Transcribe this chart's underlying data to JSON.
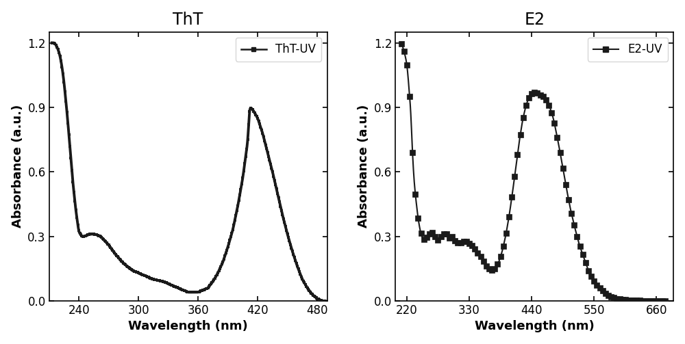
{
  "tht_title": "ThT",
  "e2_title": "E2",
  "tht_legend": "ThT-UV",
  "e2_legend": "E2-UV",
  "xlabel": "Wavelength (nm)",
  "ylabel": "Absorbance (a.u.)",
  "tht_xlim": [
    210,
    490
  ],
  "tht_xticks": [
    240,
    300,
    360,
    420,
    480
  ],
  "tht_ylim": [
    0,
    1.25
  ],
  "tht_yticks": [
    0.0,
    0.3,
    0.6,
    0.9,
    1.2
  ],
  "e2_xlim": [
    200,
    690
  ],
  "e2_xticks": [
    220,
    330,
    440,
    550,
    660
  ],
  "e2_ylim": [
    0,
    1.25
  ],
  "e2_yticks": [
    0.0,
    0.3,
    0.6,
    0.9,
    1.2
  ],
  "line_color": "#1a1a1a",
  "bg_color": "#ffffff",
  "title_fontsize": 17,
  "label_fontsize": 13,
  "tick_fontsize": 12,
  "legend_fontsize": 12,
  "tht_linewidth": 2.8,
  "e2_linewidth": 0.0,
  "marker": "s",
  "tht_markersize": 3,
  "e2_markersize": 6,
  "tht_markerspacing": 2,
  "e2_markerspacing": 6,
  "tht_key_x": [
    213,
    215,
    217,
    219,
    221,
    223,
    225,
    228,
    231,
    234,
    237,
    240,
    243,
    246,
    250,
    256,
    262,
    270,
    278,
    286,
    295,
    305,
    315,
    325,
    335,
    345,
    350,
    355,
    360,
    365,
    370,
    375,
    380,
    385,
    390,
    395,
    400,
    405,
    410,
    412,
    415,
    420,
    425,
    430,
    435,
    440,
    445,
    450,
    455,
    460,
    465,
    470,
    475,
    480,
    485,
    488
  ],
  "tht_key_y": [
    1.2,
    1.2,
    1.19,
    1.17,
    1.14,
    1.09,
    1.02,
    0.88,
    0.72,
    0.55,
    0.42,
    0.32,
    0.3,
    0.3,
    0.31,
    0.31,
    0.3,
    0.26,
    0.21,
    0.17,
    0.14,
    0.12,
    0.1,
    0.09,
    0.07,
    0.05,
    0.04,
    0.04,
    0.04,
    0.05,
    0.06,
    0.09,
    0.13,
    0.18,
    0.25,
    0.33,
    0.44,
    0.57,
    0.74,
    0.9,
    0.89,
    0.85,
    0.78,
    0.69,
    0.6,
    0.5,
    0.4,
    0.31,
    0.23,
    0.16,
    0.1,
    0.06,
    0.03,
    0.01,
    0.0,
    0.0
  ],
  "e2_key_x": [
    210,
    213,
    216,
    218,
    220,
    222,
    224,
    226,
    228,
    230,
    233,
    236,
    240,
    244,
    248,
    252,
    256,
    260,
    264,
    268,
    272,
    276,
    280,
    284,
    288,
    292,
    296,
    300,
    305,
    310,
    316,
    322,
    328,
    334,
    340,
    346,
    352,
    358,
    364,
    370,
    376,
    382,
    388,
    394,
    400,
    406,
    412,
    418,
    424,
    430,
    436,
    442,
    448,
    454,
    460,
    466,
    472,
    478,
    482,
    488,
    494,
    500,
    508,
    516,
    524,
    532,
    540,
    548,
    556,
    564,
    572,
    580,
    590,
    600,
    612,
    624,
    636,
    648,
    660,
    672,
    680
  ],
  "e2_key_y": [
    1.2,
    1.18,
    1.15,
    1.13,
    1.1,
    1.05,
    0.98,
    0.92,
    0.82,
    0.68,
    0.55,
    0.47,
    0.38,
    0.32,
    0.29,
    0.28,
    0.3,
    0.31,
    0.32,
    0.31,
    0.29,
    0.28,
    0.3,
    0.31,
    0.32,
    0.3,
    0.29,
    0.3,
    0.28,
    0.27,
    0.27,
    0.28,
    0.27,
    0.26,
    0.24,
    0.22,
    0.2,
    0.17,
    0.15,
    0.14,
    0.15,
    0.18,
    0.23,
    0.3,
    0.39,
    0.5,
    0.62,
    0.74,
    0.84,
    0.91,
    0.95,
    0.97,
    0.97,
    0.96,
    0.95,
    0.93,
    0.9,
    0.85,
    0.8,
    0.72,
    0.63,
    0.54,
    0.43,
    0.34,
    0.26,
    0.2,
    0.14,
    0.1,
    0.07,
    0.05,
    0.03,
    0.02,
    0.01,
    0.007,
    0.004,
    0.002,
    0.001,
    0.001,
    0.001,
    0.001,
    0.001
  ]
}
